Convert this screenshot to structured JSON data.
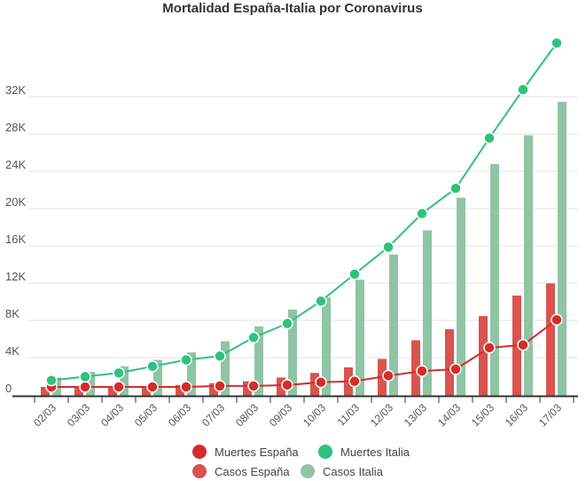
{
  "chart_data": {
    "type": "bar+line",
    "title": "Mortalidad España-Italia por Coronavirus",
    "xlabel": "",
    "ylabel": "",
    "categories": [
      "02/03",
      "03/03",
      "04/03",
      "05/03",
      "06/03",
      "07/03",
      "08/03",
      "09/03",
      "10/03",
      "11/03",
      "12/03",
      "13/03",
      "14/03",
      "15/03",
      "16/03",
      "17/03"
    ],
    "ylim": [
      0,
      37000
    ],
    "yticks": [
      0,
      4000,
      8000,
      12000,
      16000,
      20000,
      24000,
      28000,
      32000
    ],
    "ytick_labels": [
      "0",
      "4K",
      "8K",
      "12K",
      "16K",
      "20K",
      "24K",
      "28K",
      "32K"
    ],
    "grid": true,
    "legend_position": "bottom",
    "series": [
      {
        "name": "Casos España",
        "kind": "bar",
        "color": "#d9534f",
        "values": [
          100,
          120,
          150,
          200,
          300,
          500,
          700,
          1100,
          1600,
          2200,
          3100,
          5100,
          6300,
          7700,
          9900,
          11200
        ]
      },
      {
        "name": "Casos Italia",
        "kind": "bar",
        "color": "#8fc4a5",
        "values": [
          1100,
          1700,
          2300,
          3000,
          3800,
          5000,
          6600,
          8400,
          9700,
          11600,
          14300,
          16900,
          20400,
          24000,
          27100,
          30700
        ]
      },
      {
        "name": "Muertes España",
        "kind": "line",
        "color": "#d62b2b",
        "values": [
          100,
          100,
          100,
          100,
          100,
          200,
          200,
          300,
          600,
          700,
          1300,
          1800,
          2000,
          4300,
          4600,
          7300
        ]
      },
      {
        "name": "Muertes Italia",
        "kind": "line",
        "color": "#2ec27e",
        "values": [
          800,
          1200,
          1600,
          2300,
          3000,
          3400,
          5400,
          6900,
          9300,
          12200,
          15100,
          18700,
          21400,
          26800,
          32000,
          37000
        ]
      }
    ],
    "legend": [
      "Muertes España",
      "Muertes Italia",
      "Casos España",
      "Casos Italia"
    ]
  }
}
